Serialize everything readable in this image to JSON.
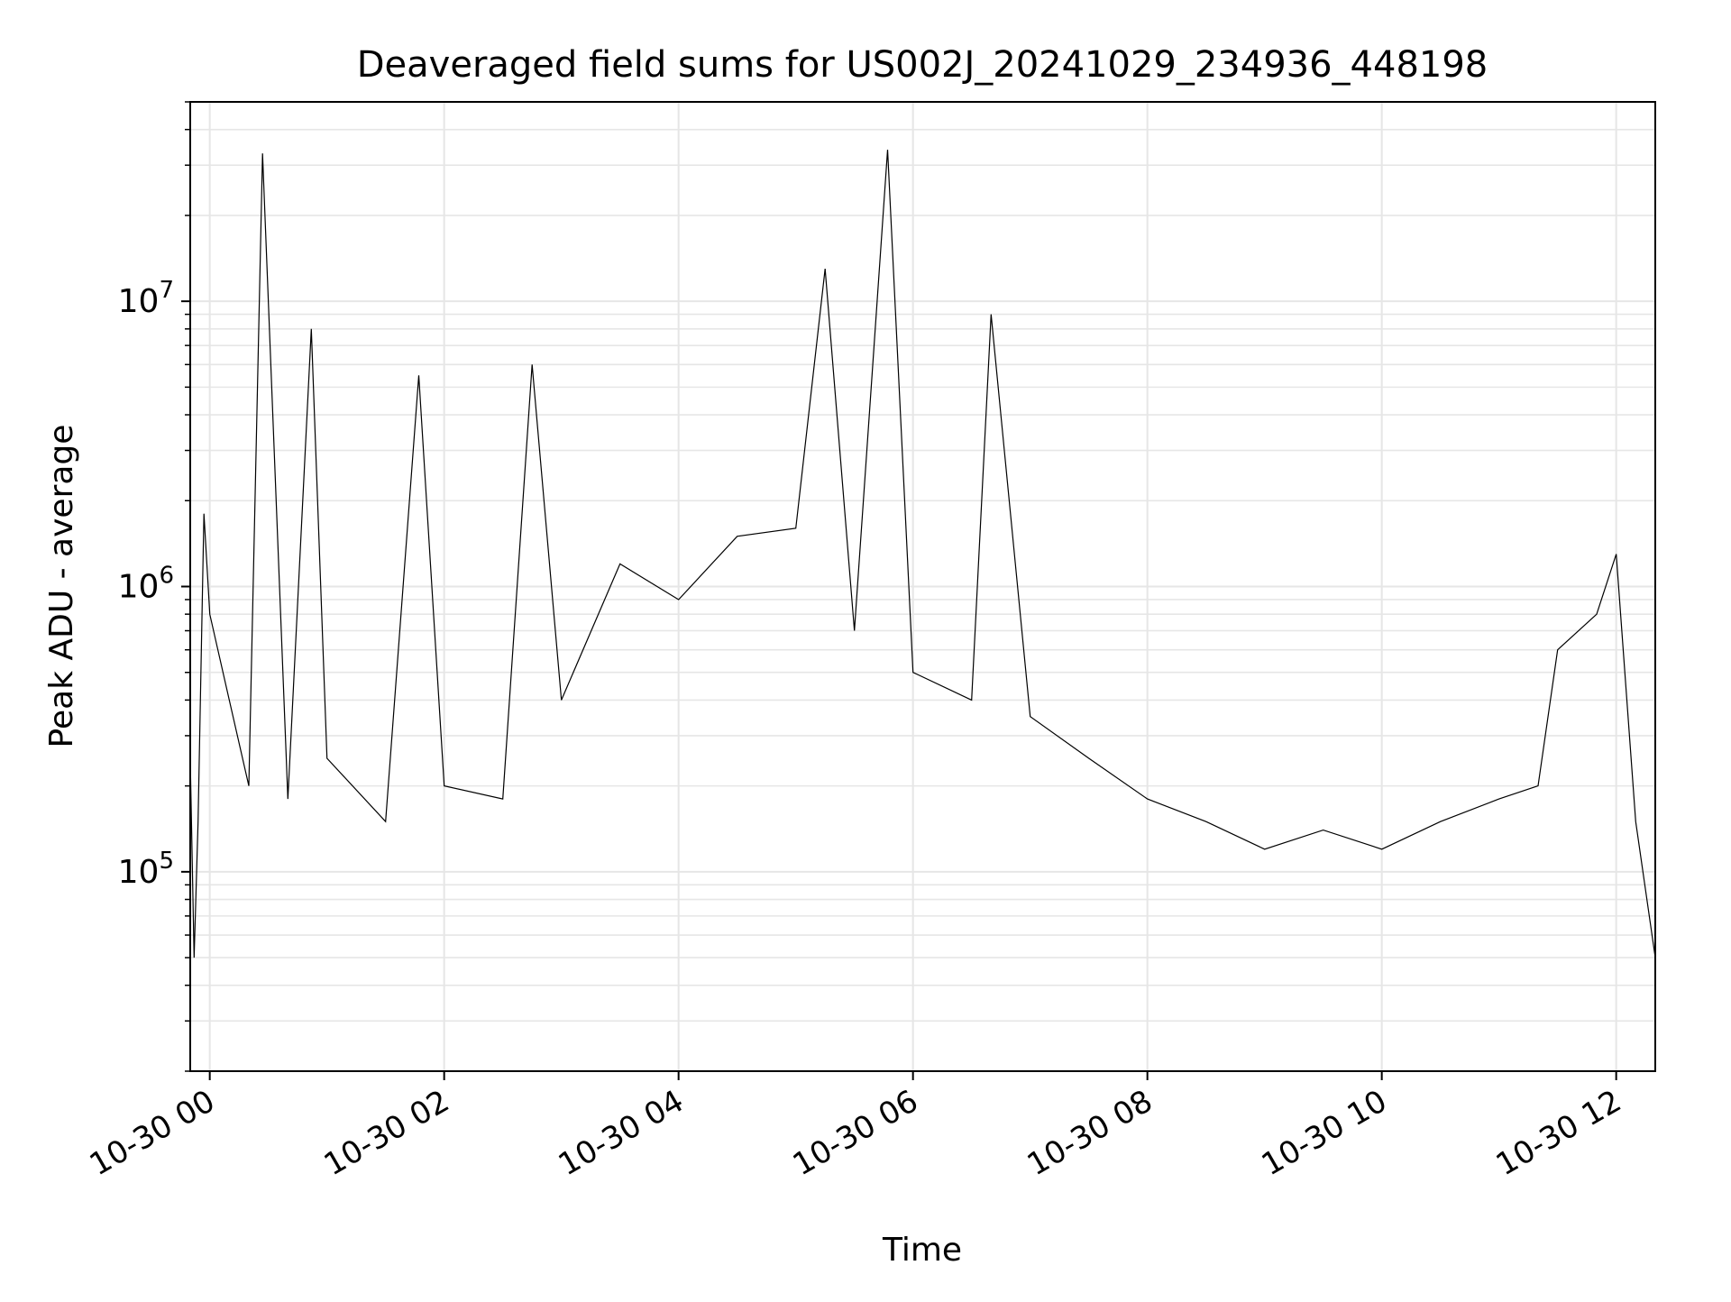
{
  "chart_data": {
    "type": "line",
    "title": "Deaveraged field sums for US002J_20241029_234936_448198",
    "xlabel": "Time",
    "ylabel": "Peak ADU - average",
    "x_range": [
      "2024-10-29 23:50",
      "2024-10-30 12:20"
    ],
    "y_scale": "log",
    "ylim": [
      20000,
      50000000
    ],
    "grid": true,
    "legend": "none",
    "line_color": "#000000",
    "grid_color": "#e6e6e6",
    "x_ticks": [
      {
        "time": "2024-10-30 00:00",
        "label": "10-30 00"
      },
      {
        "time": "2024-10-30 02:00",
        "label": "10-30 02"
      },
      {
        "time": "2024-10-30 04:00",
        "label": "10-30 04"
      },
      {
        "time": "2024-10-30 06:00",
        "label": "10-30 06"
      },
      {
        "time": "2024-10-30 08:00",
        "label": "10-30 08"
      },
      {
        "time": "2024-10-30 10:00",
        "label": "10-30 10"
      },
      {
        "time": "2024-10-30 12:00",
        "label": "10-30 12"
      }
    ],
    "y_ticks": [
      {
        "value": 100000,
        "label_base": "10",
        "label_exp": "5"
      },
      {
        "value": 1000000,
        "label_base": "10",
        "label_exp": "6"
      },
      {
        "value": 10000000,
        "label_base": "10",
        "label_exp": "7"
      }
    ],
    "series": [
      {
        "points": [
          [
            "2024-10-29 23:50",
            250000
          ],
          [
            "2024-10-29 23:52",
            50000
          ],
          [
            "2024-10-29 23:54",
            150000
          ],
          [
            "2024-10-29 23:57",
            1800000
          ],
          [
            "2024-10-30 00:00",
            800000
          ],
          [
            "2024-10-30 00:10",
            400000
          ],
          [
            "2024-10-30 00:20",
            200000
          ],
          [
            "2024-10-30 00:27",
            33000000
          ],
          [
            "2024-10-30 00:40",
            180000
          ],
          [
            "2024-10-30 00:52",
            8000000
          ],
          [
            "2024-10-30 01:00",
            250000
          ],
          [
            "2024-10-30 01:30",
            150000
          ],
          [
            "2024-10-30 01:47",
            5500000
          ],
          [
            "2024-10-30 02:00",
            200000
          ],
          [
            "2024-10-30 02:30",
            180000
          ],
          [
            "2024-10-30 02:45",
            6000000
          ],
          [
            "2024-10-30 03:00",
            400000
          ],
          [
            "2024-10-30 03:30",
            1200000
          ],
          [
            "2024-10-30 04:00",
            900000
          ],
          [
            "2024-10-30 04:30",
            1500000
          ],
          [
            "2024-10-30 05:00",
            1600000
          ],
          [
            "2024-10-30 05:15",
            13000000
          ],
          [
            "2024-10-30 05:30",
            700000
          ],
          [
            "2024-10-30 05:47",
            34000000
          ],
          [
            "2024-10-30 06:00",
            500000
          ],
          [
            "2024-10-30 06:30",
            400000
          ],
          [
            "2024-10-30 06:40",
            9000000
          ],
          [
            "2024-10-30 07:00",
            350000
          ],
          [
            "2024-10-30 07:30",
            250000
          ],
          [
            "2024-10-30 08:00",
            180000
          ],
          [
            "2024-10-30 08:30",
            150000
          ],
          [
            "2024-10-30 09:00",
            120000
          ],
          [
            "2024-10-30 09:30",
            140000
          ],
          [
            "2024-10-30 10:00",
            120000
          ],
          [
            "2024-10-30 10:30",
            150000
          ],
          [
            "2024-10-30 11:00",
            180000
          ],
          [
            "2024-10-30 11:20",
            200000
          ],
          [
            "2024-10-30 11:30",
            600000
          ],
          [
            "2024-10-30 11:50",
            800000
          ],
          [
            "2024-10-30 12:00",
            1300000
          ],
          [
            "2024-10-30 12:10",
            150000
          ],
          [
            "2024-10-30 12:20",
            50000
          ]
        ]
      }
    ]
  }
}
